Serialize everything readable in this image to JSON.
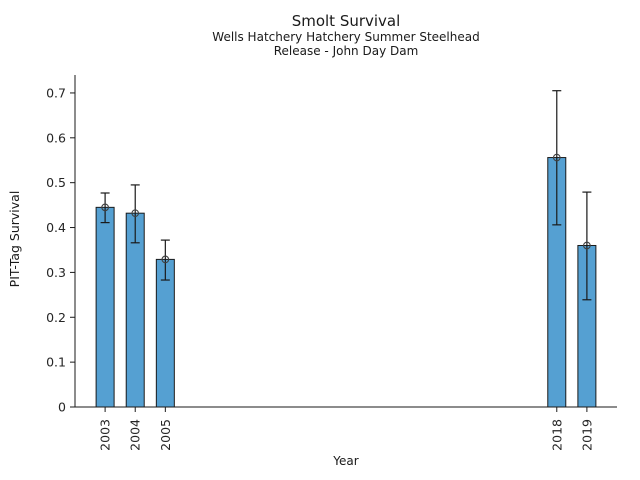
{
  "chart_data": {
    "type": "bar",
    "title": "Smolt Survival",
    "subtitle1": "Wells Hatchery Hatchery Summer Steelhead",
    "subtitle2": "Release - John Day Dam",
    "xlabel": "Year",
    "ylabel": "PIT-Tag Survival",
    "categories": [
      "2003",
      "2004",
      "2005",
      "2018",
      "2019"
    ],
    "x_numeric": [
      2003,
      2004,
      2005,
      2018,
      2019
    ],
    "values": [
      0.445,
      0.432,
      0.329,
      0.556,
      0.36
    ],
    "error_low": [
      0.411,
      0.366,
      0.283,
      0.406,
      0.239
    ],
    "error_high": [
      0.477,
      0.495,
      0.372,
      0.705,
      0.479
    ],
    "ylim": [
      0,
      0.74
    ],
    "x_range": [
      2002,
      2020
    ],
    "yticks": [
      0,
      0.1,
      0.2,
      0.3,
      0.4,
      0.5,
      0.6,
      0.7
    ],
    "ytick_labels": [
      "0",
      "0.1",
      "0.2",
      "0.3",
      "0.4",
      "0.5",
      "0.6",
      "0.7"
    ],
    "grid": false,
    "legend_position": "none",
    "marker": "open-circle",
    "colors": {
      "bar_fill": "#55A0D2",
      "bar_edge": "#1a1a1a",
      "error_bar": "#1a1a1a",
      "marker_stroke": "#404040",
      "axis": "#1a1a1a",
      "text": "#262626",
      "background": "#ffffff"
    }
  }
}
